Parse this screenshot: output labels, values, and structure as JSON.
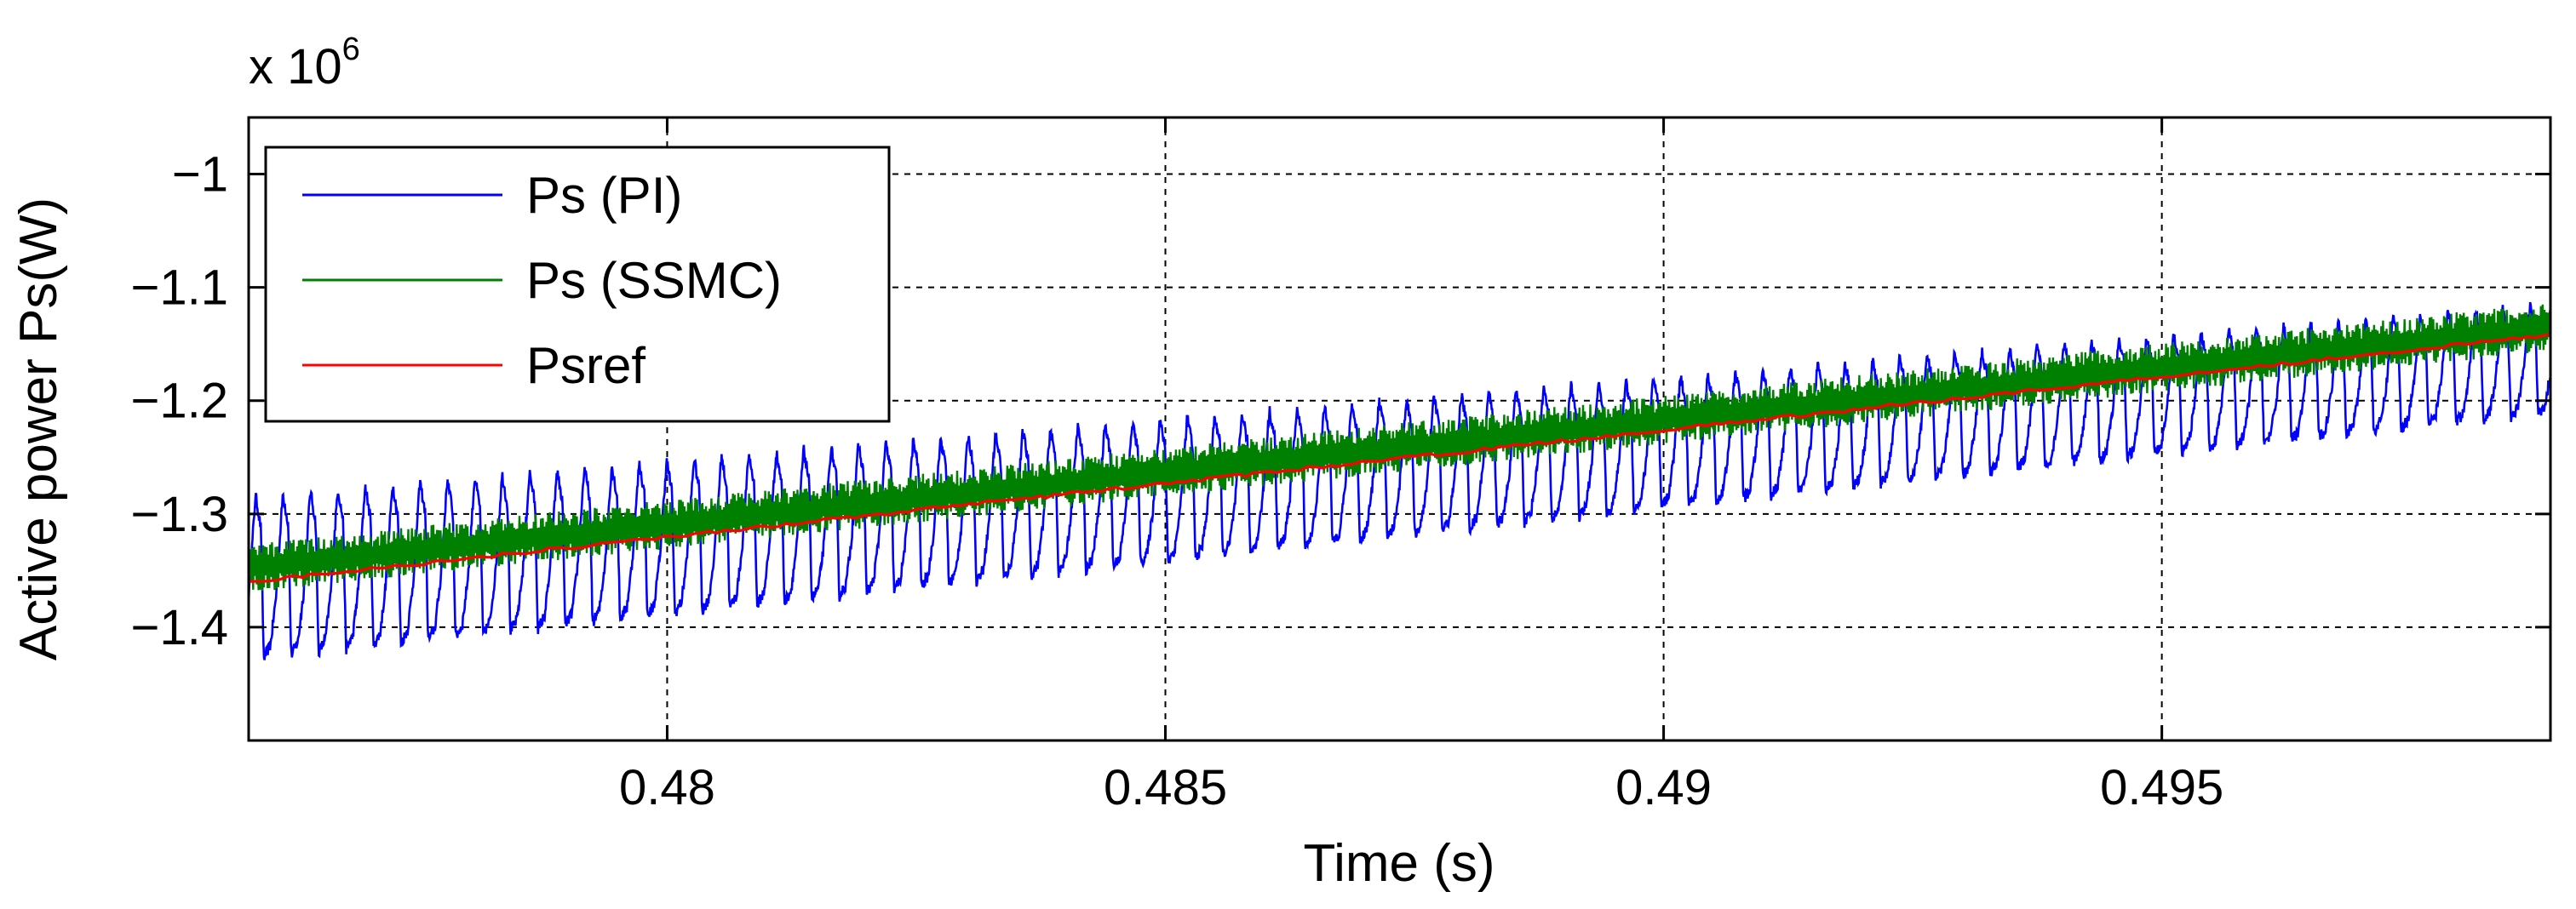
{
  "chart_data": {
    "type": "line",
    "title": "",
    "xlabel": "Time (s)",
    "ylabel": "Active power Ps(W)",
    "y_multiplier": {
      "base": "x 10",
      "exponent": "6"
    },
    "xlim": [
      0.4758,
      0.4989
    ],
    "ylim": [
      -1.5,
      -0.95
    ],
    "x_ticks": [
      0.48,
      0.485,
      0.49,
      0.495
    ],
    "x_tick_labels": [
      "0.48",
      "0.485",
      "0.49",
      "0.495"
    ],
    "y_ticks": [
      -1.4,
      -1.3,
      -1.2,
      -1.1,
      -1.0
    ],
    "y_tick_labels": [
      "−1.4",
      "−1.3",
      "−1.2",
      "−1.1",
      "−1"
    ],
    "grid": true,
    "legend_position": "top-left",
    "series": [
      {
        "name": "Ps (PI)",
        "color": "#0000ff",
        "description_values": {
          "start_mean": -1.36,
          "end_mean": -1.165,
          "oscillation_amplitude_start": 0.09,
          "oscillation_amplitude_end": 0.06,
          "oscillation_period_s": 0.000275
        }
      },
      {
        "name": "Ps (SSMC)",
        "color": "#008000",
        "description_values": {
          "start_mean": -1.348,
          "end_mean": -1.135,
          "ripple_amplitude": 0.018,
          "ripple_period_s": 5e-05
        }
      },
      {
        "name": "Psref",
        "color": "#ff0000",
        "description_values": {
          "start": -1.36,
          "end": -1.142
        }
      }
    ]
  }
}
